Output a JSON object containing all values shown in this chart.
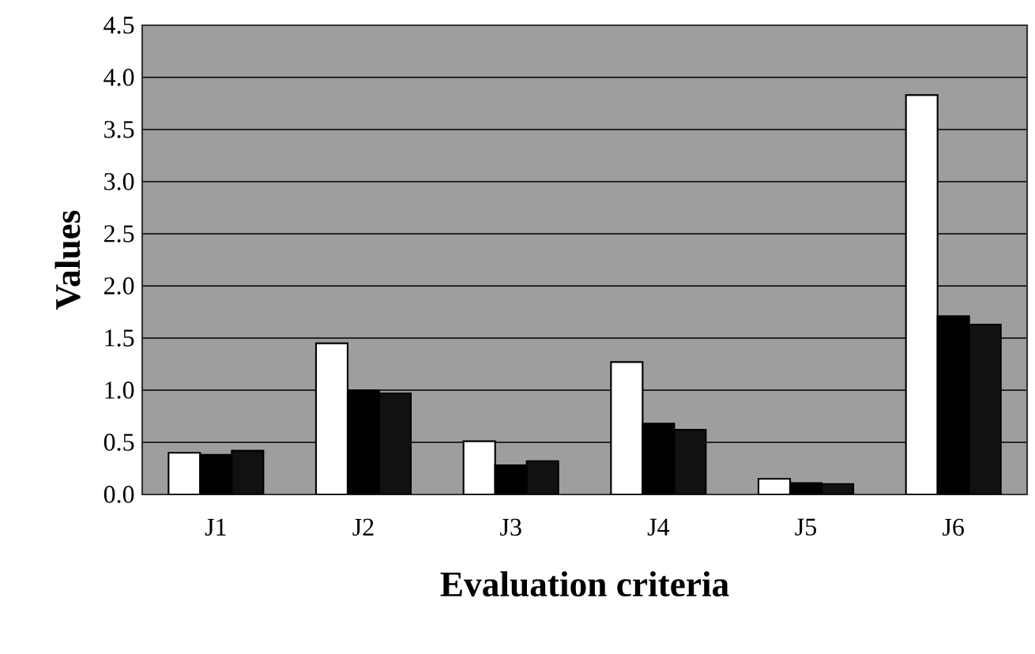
{
  "chart_data": {
    "type": "bar",
    "xlabel": "Evaluation criteria",
    "ylabel": "Values",
    "categories": [
      "J1",
      "J2",
      "J3",
      "J4",
      "J5",
      "J6"
    ],
    "series": [
      {
        "color": "#ffffff",
        "values": [
          0.4,
          1.45,
          0.51,
          1.27,
          0.15,
          3.83
        ]
      },
      {
        "color": "#000000",
        "values": [
          0.38,
          1.0,
          0.28,
          0.68,
          0.11,
          1.71
        ]
      },
      {
        "color": "#111111",
        "values": [
          0.42,
          0.97,
          0.32,
          0.62,
          0.1,
          1.63
        ]
      }
    ],
    "ylim": [
      0,
      4.5
    ],
    "yticks": [
      {
        "value": 0,
        "label": "0.0"
      },
      {
        "value": 0.5,
        "label": "0.5"
      },
      {
        "value": 1,
        "label": "1.0"
      },
      {
        "value": 1.5,
        "label": "1.5"
      },
      {
        "value": 2,
        "label": "2.0"
      },
      {
        "value": 2.5,
        "label": "2.5"
      },
      {
        "value": 3,
        "label": "3.0"
      },
      {
        "value": 3.5,
        "label": "3.5"
      },
      {
        "value": 4,
        "label": "4.0"
      },
      {
        "value": 4.5,
        "label": "4.5"
      }
    ],
    "grid": "y"
  }
}
